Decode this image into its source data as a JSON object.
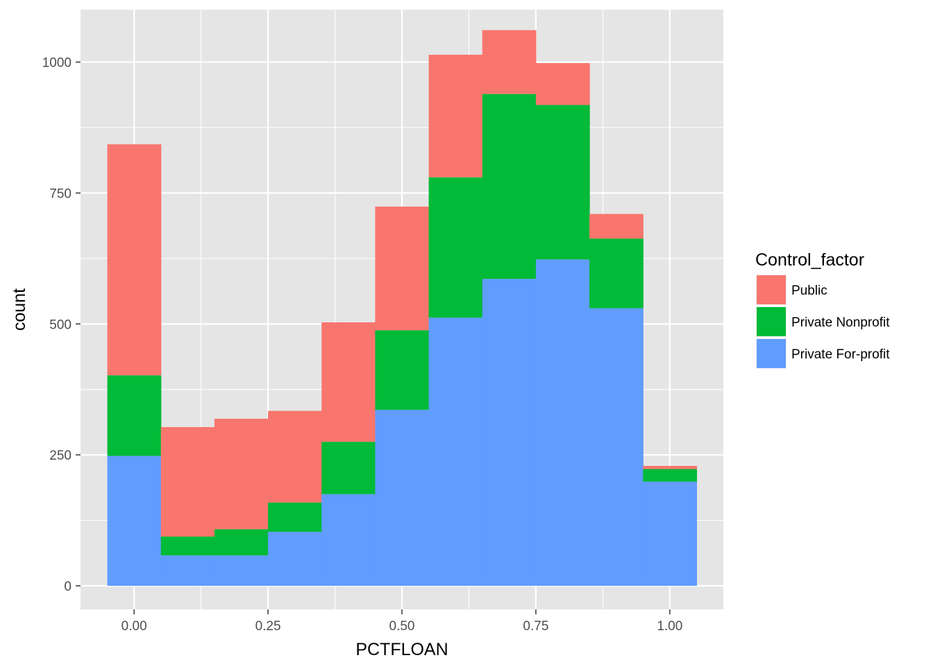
{
  "chart_data": {
    "type": "bar",
    "stacked": true,
    "histogram": true,
    "xlabel": "PCTFLOAN",
    "ylabel": "count",
    "xlim": [
      -0.1,
      1.1
    ],
    "ylim": [
      -45,
      1100
    ],
    "x_ticks": [
      0.0,
      0.25,
      0.5,
      0.75,
      1.0
    ],
    "x_tick_labels": [
      "0.00",
      "0.25",
      "0.50",
      "0.75",
      "1.00"
    ],
    "y_ticks": [
      0,
      250,
      500,
      750,
      1000
    ],
    "y_tick_labels": [
      "0",
      "250",
      "500",
      "750",
      "1000"
    ],
    "grid": true,
    "bin_width": 0.1,
    "bin_centers": [
      0.0,
      0.1,
      0.2,
      0.3,
      0.4,
      0.5,
      0.6,
      0.7,
      0.8,
      0.9,
      1.0
    ],
    "legend": {
      "title": "Control_factor",
      "position": "right"
    },
    "series": [
      {
        "name": "Public",
        "color": "#F8766D",
        "values": [
          441,
          209,
          211,
          175,
          228,
          236,
          234,
          122,
          80,
          47,
          6
        ]
      },
      {
        "name": "Private Nonprofit",
        "color": "#00BA38",
        "values": [
          154,
          36,
          50,
          56,
          100,
          152,
          268,
          353,
          295,
          133,
          24
        ]
      },
      {
        "name": "Private For-profit",
        "color": "#619CFF",
        "values": [
          248,
          58,
          58,
          103,
          175,
          336,
          512,
          586,
          623,
          530,
          199
        ]
      }
    ],
    "panel_background": "#E5E5E5",
    "gridline_color": "#FFFFFF"
  }
}
